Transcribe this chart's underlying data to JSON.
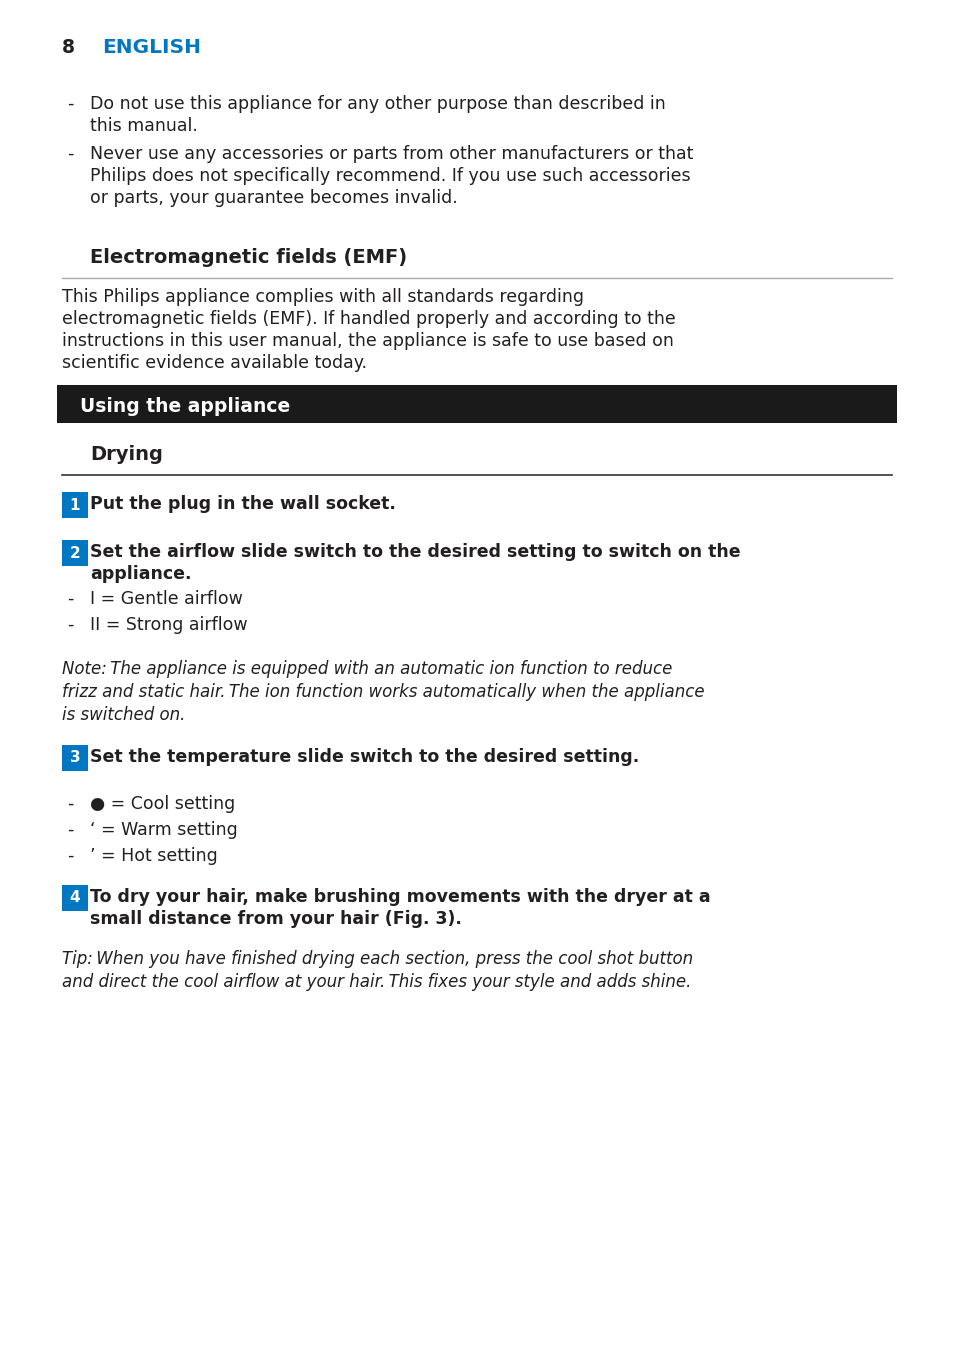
{
  "page_number": "8",
  "header_title": "ENGLISH",
  "header_color": "#0077c2",
  "background_color": "#ffffff",
  "text_color": "#231f20",
  "section_banner_text": "Using the appliance",
  "section_banner_bg": "#1a1a1a",
  "section_banner_fg": "#ffffff",
  "subsection_heading": "Drying",
  "step1_text": "Put the plug in the wall socket.",
  "step2_line1": "Set the airflow slide switch to the desired setting to switch on the",
  "step2_line2": "appliance.",
  "step2_bullets": [
    "I = Gentle airflow",
    "II = Strong airflow"
  ],
  "note_text": "Note: The appliance is equipped with an automatic ion function to reduce\nfrizz and static hair. The ion function works automatically when the appliance\nis switched on.",
  "step3_text": "Set the temperature slide switch to the desired setting.",
  "step3_bullets": [
    "● = Cool setting",
    "‘ = Warm setting",
    "’ = Hot setting"
  ],
  "step4_line1": "To dry your hair, make brushing movements with the dryer at a",
  "step4_line2": "small distance from your hair (Fig. 3).",
  "tip_line1": "Tip: When you have finished drying each section, press the cool shot button",
  "tip_line2": "and direct the cool airflow at your hair. This fixes your style and adds shine.",
  "blue_color": "#0077c2",
  "emf_heading": "Electromagnetic fields (EMF)",
  "emf_body": "This Philips appliance complies with all standards regarding\nelectromagnetic fields (EMF). If handled properly and according to the\ninstructions in this user manual, the appliance is safe to use based on\nscientific evidence available today.",
  "bullet1_line1": "Do not use this appliance for any other purpose than described in",
  "bullet1_line2": "this manual.",
  "bullet2_line1": "Never use any accessories or parts from other manufacturers or that",
  "bullet2_line2": "Philips does not specifically recommend. If you use such accessories",
  "bullet2_line3": "or parts, your guarantee becomes invalid."
}
